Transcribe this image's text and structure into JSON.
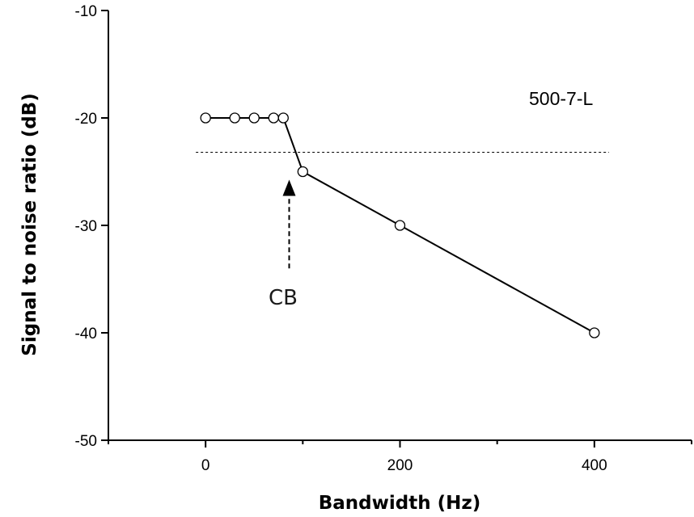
{
  "chart_data": {
    "type": "line",
    "title": "",
    "xlabel": "Bandwidth (Hz)",
    "ylabel": "Signal to noise ratio (dB)",
    "xlim": [
      -100,
      500
    ],
    "ylim": [
      -50,
      -10
    ],
    "x_ticks": [
      0,
      200,
      400
    ],
    "x_minor_ticks": [
      -100,
      100,
      300,
      500
    ],
    "y_ticks": [
      -10,
      -20,
      -30,
      -40,
      -50
    ],
    "series": [
      {
        "name": "500-7-L",
        "x": [
          0,
          30,
          50,
          70,
          80,
          100,
          200,
          400
        ],
        "y": [
          -20,
          -20,
          -20,
          -20,
          -20,
          -25,
          -30,
          -40
        ]
      }
    ],
    "reference_line": {
      "style": "dashed",
      "y": -23.2,
      "x_start": -10,
      "x_end": 415
    },
    "annotations": [
      {
        "text": "CB",
        "arrow_x": 86,
        "arrow_from_y": -34,
        "arrow_to_y": -26.5
      },
      {
        "text": "500-7-L"
      }
    ],
    "grid": false
  }
}
